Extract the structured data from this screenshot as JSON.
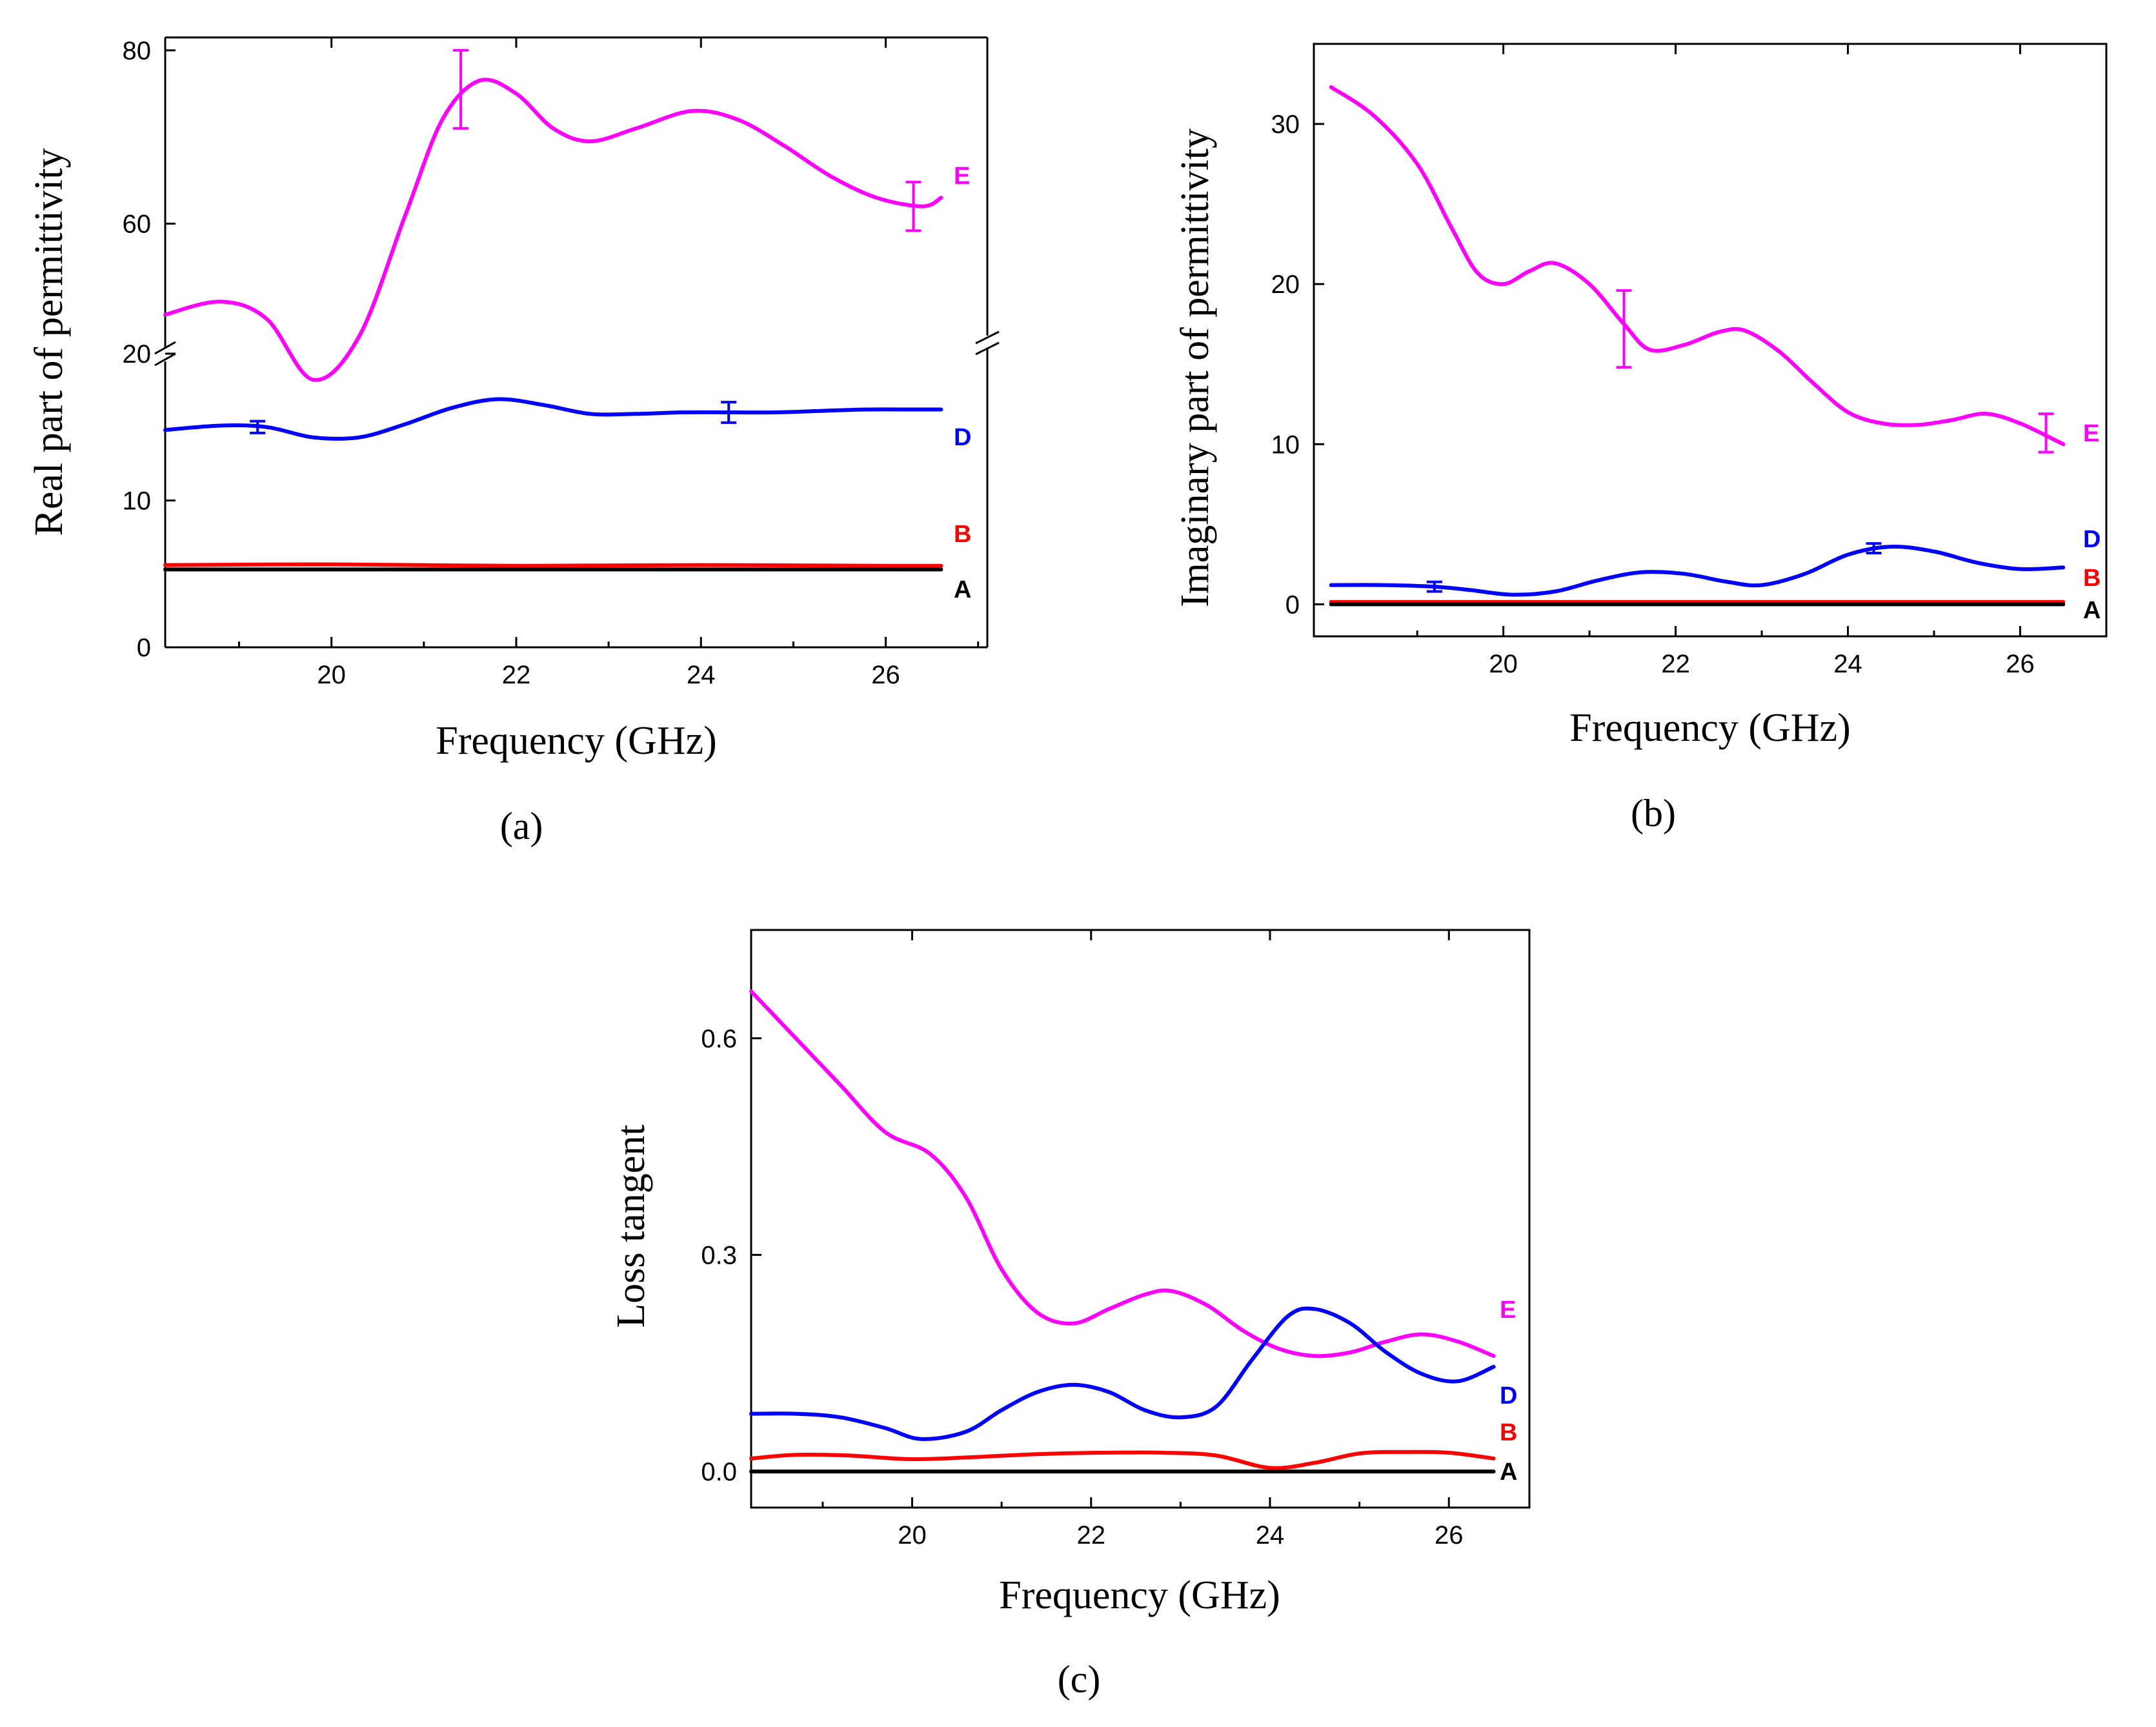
{
  "figure": {
    "panel_labels": [
      "(a)",
      "(b)",
      "(c)"
    ]
  },
  "colors": {
    "E": "#ff00ff",
    "D": "#0000ff",
    "B": "#ff0000",
    "A": "#000000"
  },
  "chart_data": [
    {
      "id": "a",
      "type": "line",
      "panel_label": "(a)",
      "xlabel": "Frequency (GHz)",
      "ylabel": "Real part of permittivity",
      "xlim": [
        18.2,
        27.1
      ],
      "xticks": [
        20,
        22,
        24,
        26
      ],
      "axis_break": {
        "lower": [
          0,
          20
        ],
        "upper": [
          45,
          80
        ]
      },
      "yticks": [
        0,
        10,
        20,
        60,
        80
      ],
      "series": [
        {
          "name": "E",
          "x": [
            18.2,
            18.8,
            19.3,
            19.8,
            20.3,
            20.8,
            21.2,
            21.6,
            22.0,
            22.4,
            22.8,
            23.3,
            23.9,
            24.4,
            24.9,
            25.4,
            25.9,
            26.4,
            26.6
          ],
          "y": [
            49.5,
            51,
            49,
            42,
            47,
            61,
            72,
            76.5,
            75,
            71,
            69.5,
            71,
            73,
            72,
            69,
            65.5,
            63,
            62,
            63
          ],
          "errorbars": [
            {
              "x": 21.4,
              "y": 75.5,
              "err": 4.5
            },
            {
              "x": 26.3,
              "y": 62,
              "err": 2.8
            }
          ]
        },
        {
          "name": "D",
          "x": [
            18.2,
            18.8,
            19.3,
            19.8,
            20.3,
            20.8,
            21.3,
            21.8,
            22.3,
            22.8,
            23.3,
            23.8,
            24.3,
            24.8,
            25.3,
            25.8,
            26.2,
            26.6
          ],
          "y": [
            14.8,
            15.1,
            15.0,
            14.3,
            14.3,
            15.2,
            16.3,
            16.9,
            16.5,
            15.9,
            15.9,
            16.0,
            16.0,
            16.0,
            16.1,
            16.2,
            16.2,
            16.2
          ],
          "errorbars": [
            {
              "x": 19.2,
              "y": 15.0,
              "err": 0.4
            },
            {
              "x": 24.3,
              "y": 16.0,
              "err": 0.7
            }
          ]
        },
        {
          "name": "B",
          "x": [
            18.2,
            20.0,
            22.0,
            24.0,
            26.0,
            26.6
          ],
          "y": [
            5.6,
            5.65,
            5.55,
            5.6,
            5.55,
            5.55
          ]
        },
        {
          "name": "A",
          "x": [
            18.2,
            20.0,
            22.0,
            24.0,
            26.0,
            26.6
          ],
          "y": [
            5.3,
            5.3,
            5.3,
            5.3,
            5.3,
            5.3
          ]
        }
      ],
      "label_order": [
        "E",
        "D",
        "B",
        "A"
      ]
    },
    {
      "id": "b",
      "type": "line",
      "panel_label": "(b)",
      "xlabel": "Frequency (GHz)",
      "ylabel": "Imaginary part of permittivity",
      "xlim": [
        17.8,
        27.0
      ],
      "ylim": [
        -2,
        35
      ],
      "xticks": [
        20,
        22,
        24,
        26
      ],
      "yticks": [
        0,
        10,
        20,
        30
      ],
      "series": [
        {
          "name": "E",
          "x": [
            18.0,
            18.5,
            19.0,
            19.4,
            19.7,
            20.0,
            20.3,
            20.6,
            21.0,
            21.4,
            21.7,
            22.1,
            22.5,
            22.8,
            23.2,
            23.6,
            24.0,
            24.4,
            24.8,
            25.2,
            25.6,
            26.0,
            26.5
          ],
          "y": [
            32.3,
            30.5,
            27.5,
            23.5,
            20.7,
            20.0,
            20.8,
            21.3,
            20.0,
            17.5,
            15.9,
            16.2,
            17.0,
            17.1,
            15.8,
            13.8,
            12.0,
            11.3,
            11.2,
            11.5,
            11.9,
            11.3,
            10.0
          ],
          "errorbars": [
            {
              "x": 21.4,
              "y": 17.2,
              "err": 2.4
            },
            {
              "x": 26.3,
              "y": 10.7,
              "err": 1.2
            }
          ]
        },
        {
          "name": "D",
          "x": [
            18.0,
            18.6,
            19.2,
            19.6,
            20.1,
            20.6,
            21.1,
            21.6,
            22.1,
            22.6,
            23.0,
            23.5,
            24.0,
            24.5,
            25.0,
            25.5,
            26.0,
            26.5
          ],
          "y": [
            1.2,
            1.2,
            1.1,
            0.9,
            0.6,
            0.8,
            1.5,
            2.0,
            1.9,
            1.4,
            1.2,
            1.9,
            3.1,
            3.6,
            3.3,
            2.6,
            2.2,
            2.3
          ],
          "errorbars": [
            {
              "x": 19.2,
              "y": 1.1,
              "err": 0.3
            },
            {
              "x": 24.3,
              "y": 3.5,
              "err": 0.3
            }
          ]
        },
        {
          "name": "B",
          "x": [
            18.0,
            20.0,
            22.0,
            24.0,
            26.0,
            26.5
          ],
          "y": [
            0.15,
            0.15,
            0.15,
            0.15,
            0.15,
            0.15
          ]
        },
        {
          "name": "A",
          "x": [
            18.0,
            20.0,
            22.0,
            24.0,
            26.0,
            26.5
          ],
          "y": [
            0.0,
            0.0,
            0.0,
            0.0,
            0.0,
            0.0
          ]
        }
      ],
      "label_order": [
        "D",
        "B",
        "A",
        "E"
      ]
    },
    {
      "id": "c",
      "type": "line",
      "panel_label": "(c)",
      "xlabel": "Frequency (GHz)",
      "ylabel": "Loss tangent",
      "xlim": [
        18.2,
        26.9
      ],
      "ylim": [
        -0.05,
        0.75
      ],
      "xticks": [
        20,
        22,
        24,
        26
      ],
      "yticks": [
        0.0,
        0.3,
        0.6
      ],
      "ytick_labels": [
        "0.0",
        "0.3",
        "0.6"
      ],
      "series": [
        {
          "name": "E",
          "x": [
            18.2,
            18.7,
            19.2,
            19.7,
            20.2,
            20.6,
            21.0,
            21.4,
            21.8,
            22.2,
            22.6,
            22.9,
            23.3,
            23.7,
            24.1,
            24.5,
            24.9,
            25.3,
            25.7,
            26.1,
            26.5
          ],
          "y": [
            0.665,
            0.6,
            0.535,
            0.47,
            0.44,
            0.38,
            0.28,
            0.22,
            0.205,
            0.225,
            0.245,
            0.25,
            0.23,
            0.195,
            0.17,
            0.16,
            0.165,
            0.18,
            0.19,
            0.18,
            0.16
          ]
        },
        {
          "name": "D",
          "x": [
            18.2,
            18.7,
            19.2,
            19.7,
            20.1,
            20.6,
            21.0,
            21.4,
            21.8,
            22.2,
            22.6,
            23.0,
            23.4,
            23.8,
            24.2,
            24.5,
            24.9,
            25.3,
            25.7,
            26.1,
            26.5
          ],
          "y": [
            0.08,
            0.08,
            0.075,
            0.06,
            0.045,
            0.055,
            0.085,
            0.11,
            0.12,
            0.11,
            0.085,
            0.075,
            0.09,
            0.155,
            0.215,
            0.225,
            0.205,
            0.165,
            0.135,
            0.125,
            0.145
          ]
        },
        {
          "name": "B",
          "x": [
            18.2,
            18.7,
            19.3,
            20.0,
            20.7,
            21.4,
            22.1,
            22.8,
            23.4,
            24.0,
            24.5,
            25.0,
            25.5,
            26.0,
            26.5
          ],
          "y": [
            0.018,
            0.023,
            0.022,
            0.017,
            0.02,
            0.024,
            0.026,
            0.026,
            0.022,
            0.005,
            0.012,
            0.025,
            0.027,
            0.026,
            0.018
          ]
        },
        {
          "name": "A",
          "x": [
            18.2,
            20.0,
            22.0,
            24.0,
            26.0,
            26.5
          ],
          "y": [
            0.0,
            0.0,
            0.0,
            0.0,
            0.0,
            0.0
          ]
        }
      ],
      "label_order": [
        "E",
        "D",
        "B",
        "A"
      ]
    }
  ]
}
